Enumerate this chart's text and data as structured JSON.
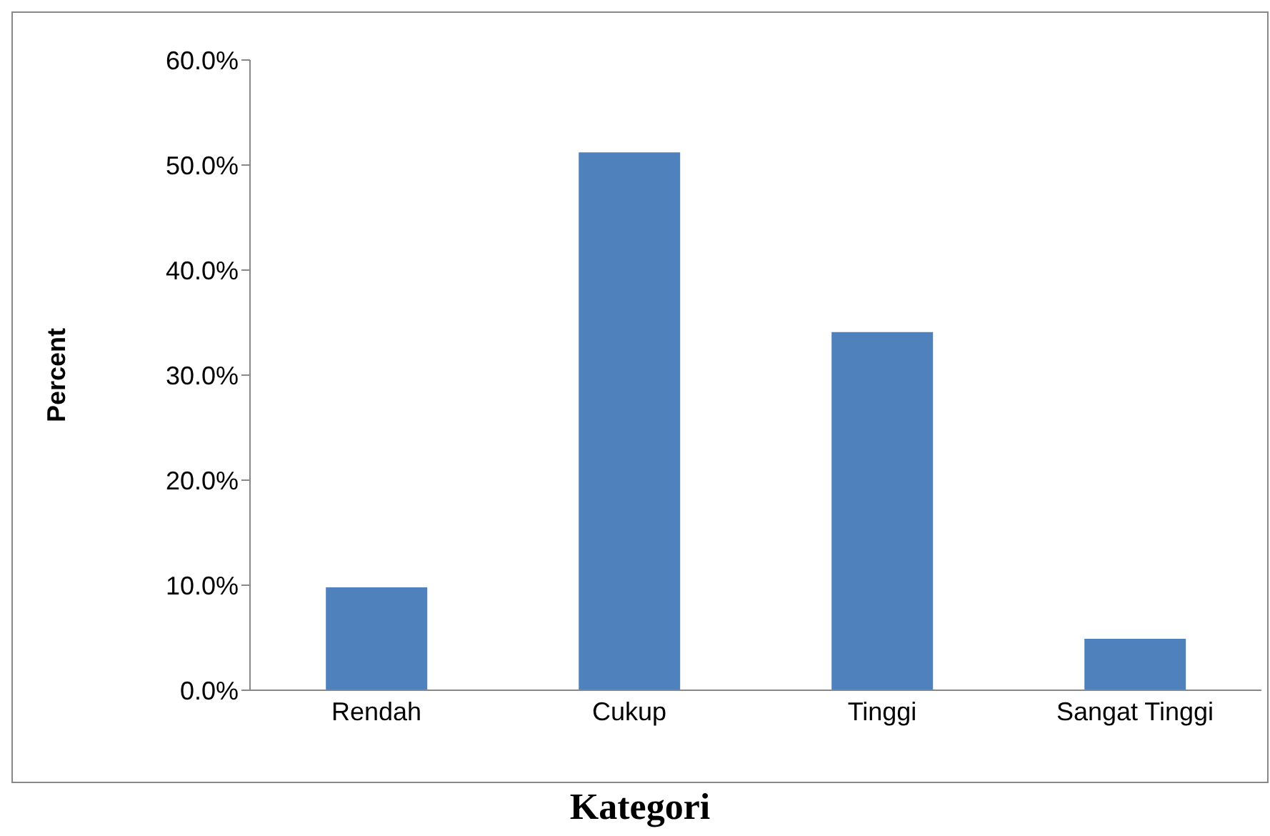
{
  "chart_data": {
    "type": "bar",
    "xlabel": "Kategori",
    "ylabel": "Percent",
    "categories": [
      "Rendah",
      "Cukup",
      "Tinggi",
      "Sangat Tinggi"
    ],
    "values": [
      9.8,
      51.2,
      34.1,
      4.9
    ],
    "color": "#4f81bd",
    "ylim": [
      0,
      60
    ],
    "yticks": [
      {
        "value": 0,
        "label": "0.0%"
      },
      {
        "value": 10,
        "label": "10.0%"
      },
      {
        "value": 20,
        "label": "20.0%"
      },
      {
        "value": 30,
        "label": "30.0%"
      },
      {
        "value": 40,
        "label": "40.0%"
      },
      {
        "value": 50,
        "label": "50.0%"
      },
      {
        "value": 60,
        "label": "60.0%"
      }
    ],
    "grid": false,
    "legend": false
  }
}
